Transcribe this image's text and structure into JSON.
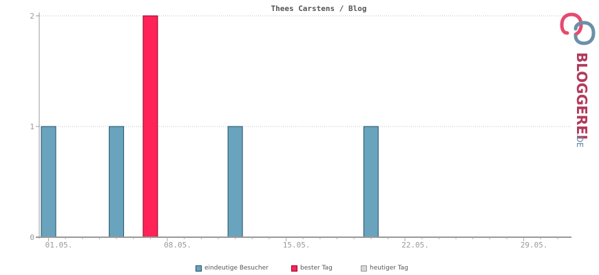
{
  "chart_data": {
    "type": "bar",
    "title": "Thees Carstens / Blog",
    "x_tick_labels": [
      "01.05.",
      "08.05.",
      "15.05.",
      "22.05.",
      "29.05."
    ],
    "y_ticks": [
      0,
      1,
      2
    ],
    "ylim": [
      0,
      2
    ],
    "grid": true,
    "series": [
      {
        "name": "eindeutige Besucher",
        "color": "#6aa3bd",
        "stroke": "#1f4f66",
        "points": [
          {
            "day": 1,
            "value": 1
          },
          {
            "day": 5,
            "value": 1
          },
          {
            "day": 12,
            "value": 1
          },
          {
            "day": 20,
            "value": 1
          }
        ]
      },
      {
        "name": "bester Tag",
        "color": "#ff2358",
        "stroke": "#8c0022",
        "points": [
          {
            "day": 7,
            "value": 2
          }
        ]
      },
      {
        "name": "heutiger Tag",
        "color": "#d6d6d6",
        "stroke": "#999999",
        "points": []
      }
    ],
    "legend_position": "bottom-center"
  },
  "logo": {
    "text_main": "BLOGGEREI",
    "text_suffix": ".DE"
  }
}
